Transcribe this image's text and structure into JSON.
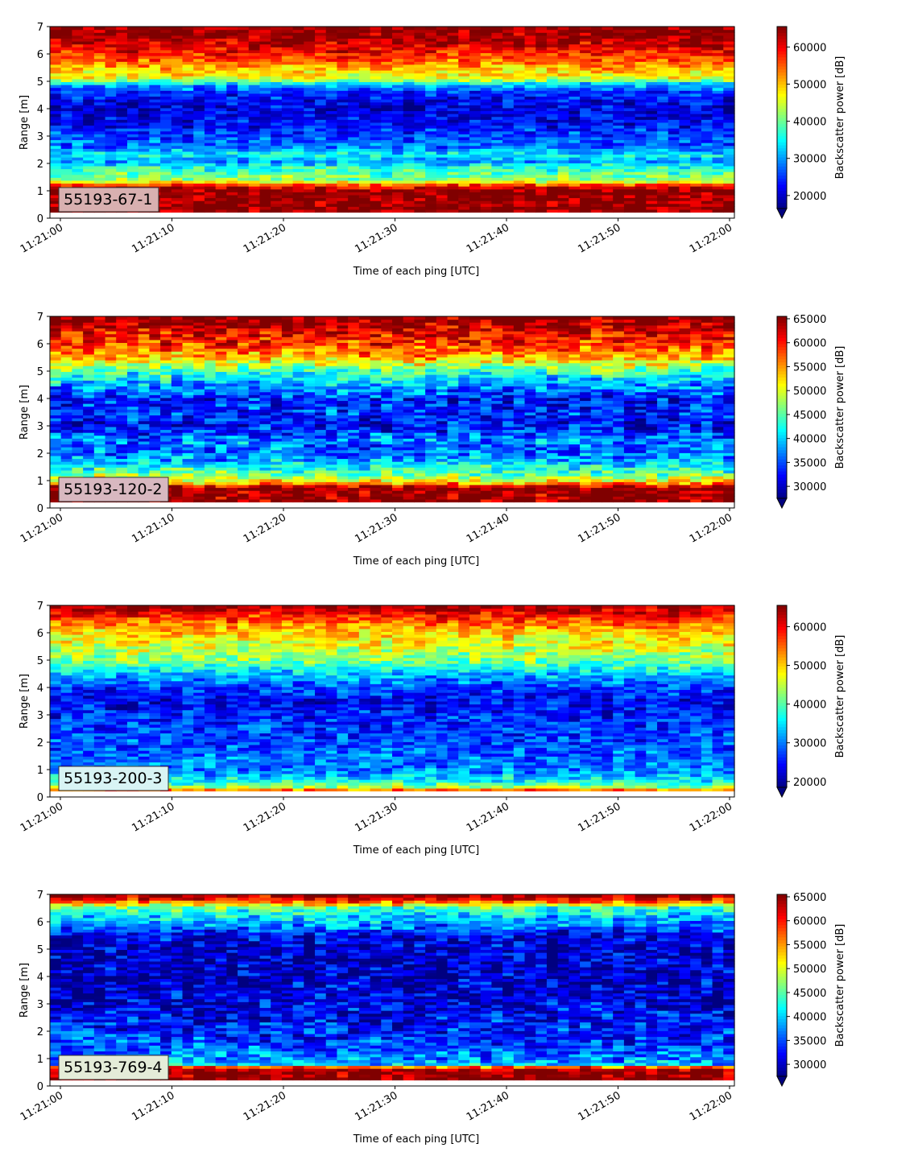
{
  "chart_data": [
    {
      "type": "heatmap",
      "label": "55193-67-1",
      "label_box_color": "#d8b0b0",
      "xlabel": "Time of each ping [UTC]",
      "ylabel": "Range [m]",
      "colorbar_label": "Backscatter power [dB]",
      "xticks": [
        "11:21:00",
        "11:21:10",
        "11:21:20",
        "11:21:30",
        "11:21:40",
        "11:21:50",
        "11:22:00"
      ],
      "yticks": [
        0,
        1,
        2,
        3,
        4,
        5,
        6,
        7
      ],
      "ylim": [
        0,
        7
      ],
      "colorbar_ticks": [
        20000,
        30000,
        40000,
        50000,
        60000
      ],
      "clim": [
        16500,
        65500
      ],
      "colormap": "jet",
      "profile": [
        [
          0.25,
          65000
        ],
        [
          1.05,
          65000
        ],
        [
          1.2,
          58000
        ],
        [
          1.4,
          42000
        ],
        [
          1.9,
          36000
        ],
        [
          2.1,
          30000
        ],
        [
          2.3,
          36000
        ],
        [
          2.6,
          28000
        ],
        [
          3.0,
          26000
        ],
        [
          3.5,
          22000
        ],
        [
          4.0,
          21000
        ],
        [
          4.6,
          24000
        ],
        [
          4.9,
          32000
        ],
        [
          5.1,
          45000
        ],
        [
          5.6,
          52000
        ],
        [
          6.0,
          58000
        ],
        [
          6.4,
          62000
        ],
        [
          6.7,
          65000
        ],
        [
          7.0,
          65000
        ]
      ]
    },
    {
      "type": "heatmap",
      "label": "55193-120-2",
      "label_box_color": "#d8b8c0",
      "xlabel": "Time of each ping [UTC]",
      "ylabel": "Range [m]",
      "colorbar_label": "Backscatter power [dB]",
      "xticks": [
        "11:21:00",
        "11:21:10",
        "11:21:20",
        "11:21:30",
        "11:21:40",
        "11:21:50",
        "11:22:00"
      ],
      "yticks": [
        0,
        1,
        2,
        3,
        4,
        5,
        6,
        7
      ],
      "ylim": [
        0,
        7
      ],
      "colorbar_ticks": [
        30000,
        35000,
        40000,
        45000,
        50000,
        55000,
        60000,
        65000
      ],
      "clim": [
        27500,
        65500
      ],
      "colormap": "jet",
      "profile": [
        [
          0.25,
          65000
        ],
        [
          0.75,
          65000
        ],
        [
          0.95,
          52000
        ],
        [
          1.3,
          45000
        ],
        [
          1.8,
          38000
        ],
        [
          2.2,
          36000
        ],
        [
          2.5,
          37000
        ],
        [
          3.0,
          32000
        ],
        [
          3.5,
          34000
        ],
        [
          4.0,
          33000
        ],
        [
          4.5,
          38000
        ],
        [
          5.0,
          44000
        ],
        [
          5.5,
          54000
        ],
        [
          6.0,
          59000
        ],
        [
          6.5,
          62000
        ],
        [
          6.8,
          65000
        ],
        [
          7.0,
          65000
        ]
      ]
    },
    {
      "type": "heatmap",
      "label": "55193-200-3",
      "label_box_color": "#d8f4f4",
      "xlabel": "Time of each ping [UTC]",
      "ylabel": "Range [m]",
      "colorbar_label": "Backscatter power [dB]",
      "xticks": [
        "11:21:00",
        "11:21:10",
        "11:21:20",
        "11:21:30",
        "11:21:40",
        "11:21:50",
        "11:22:00"
      ],
      "yticks": [
        0,
        1,
        2,
        3,
        4,
        5,
        6,
        7
      ],
      "ylim": [
        0,
        7
      ],
      "colorbar_ticks": [
        20000,
        30000,
        40000,
        50000,
        60000
      ],
      "clim": [
        18500,
        65500
      ],
      "colormap": "jet",
      "profile": [
        [
          0.2,
          62000
        ],
        [
          0.35,
          45000
        ],
        [
          0.6,
          36000
        ],
        [
          1.0,
          30000
        ],
        [
          1.5,
          29000
        ],
        [
          2.0,
          28000
        ],
        [
          2.5,
          27000
        ],
        [
          3.0,
          25000
        ],
        [
          3.5,
          24000
        ],
        [
          4.0,
          27000
        ],
        [
          4.5,
          33000
        ],
        [
          5.0,
          42000
        ],
        [
          5.5,
          46000
        ],
        [
          6.0,
          50000
        ],
        [
          6.5,
          56000
        ],
        [
          6.8,
          62000
        ],
        [
          7.0,
          64000
        ]
      ]
    },
    {
      "type": "heatmap",
      "label": "55193-769-4",
      "label_box_color": "#e4ecd8",
      "xlabel": "Time of each ping [UTC]",
      "ylabel": "Range [m]",
      "colorbar_label": "Backscatter power [dB]",
      "xticks": [
        "11:21:00",
        "11:21:10",
        "11:21:20",
        "11:21:30",
        "11:21:40",
        "11:21:50",
        "11:22:00"
      ],
      "yticks": [
        0,
        1,
        2,
        3,
        4,
        5,
        6,
        7
      ],
      "ylim": [
        0,
        7
      ],
      "colorbar_ticks": [
        30000,
        35000,
        40000,
        45000,
        50000,
        55000,
        60000,
        65000
      ],
      "clim": [
        27500,
        65500
      ],
      "colormap": "jet",
      "profile": [
        [
          0.25,
          65000
        ],
        [
          0.65,
          65000
        ],
        [
          0.8,
          40000
        ],
        [
          1.2,
          36000
        ],
        [
          1.8,
          34000
        ],
        [
          2.5,
          32000
        ],
        [
          3.0,
          31000
        ],
        [
          3.5,
          30500
        ],
        [
          4.0,
          30000
        ],
        [
          5.0,
          30000
        ],
        [
          5.5,
          31000
        ],
        [
          5.8,
          36000
        ],
        [
          6.2,
          40000
        ],
        [
          6.5,
          44000
        ],
        [
          6.8,
          60000
        ],
        [
          7.0,
          65000
        ]
      ]
    }
  ]
}
